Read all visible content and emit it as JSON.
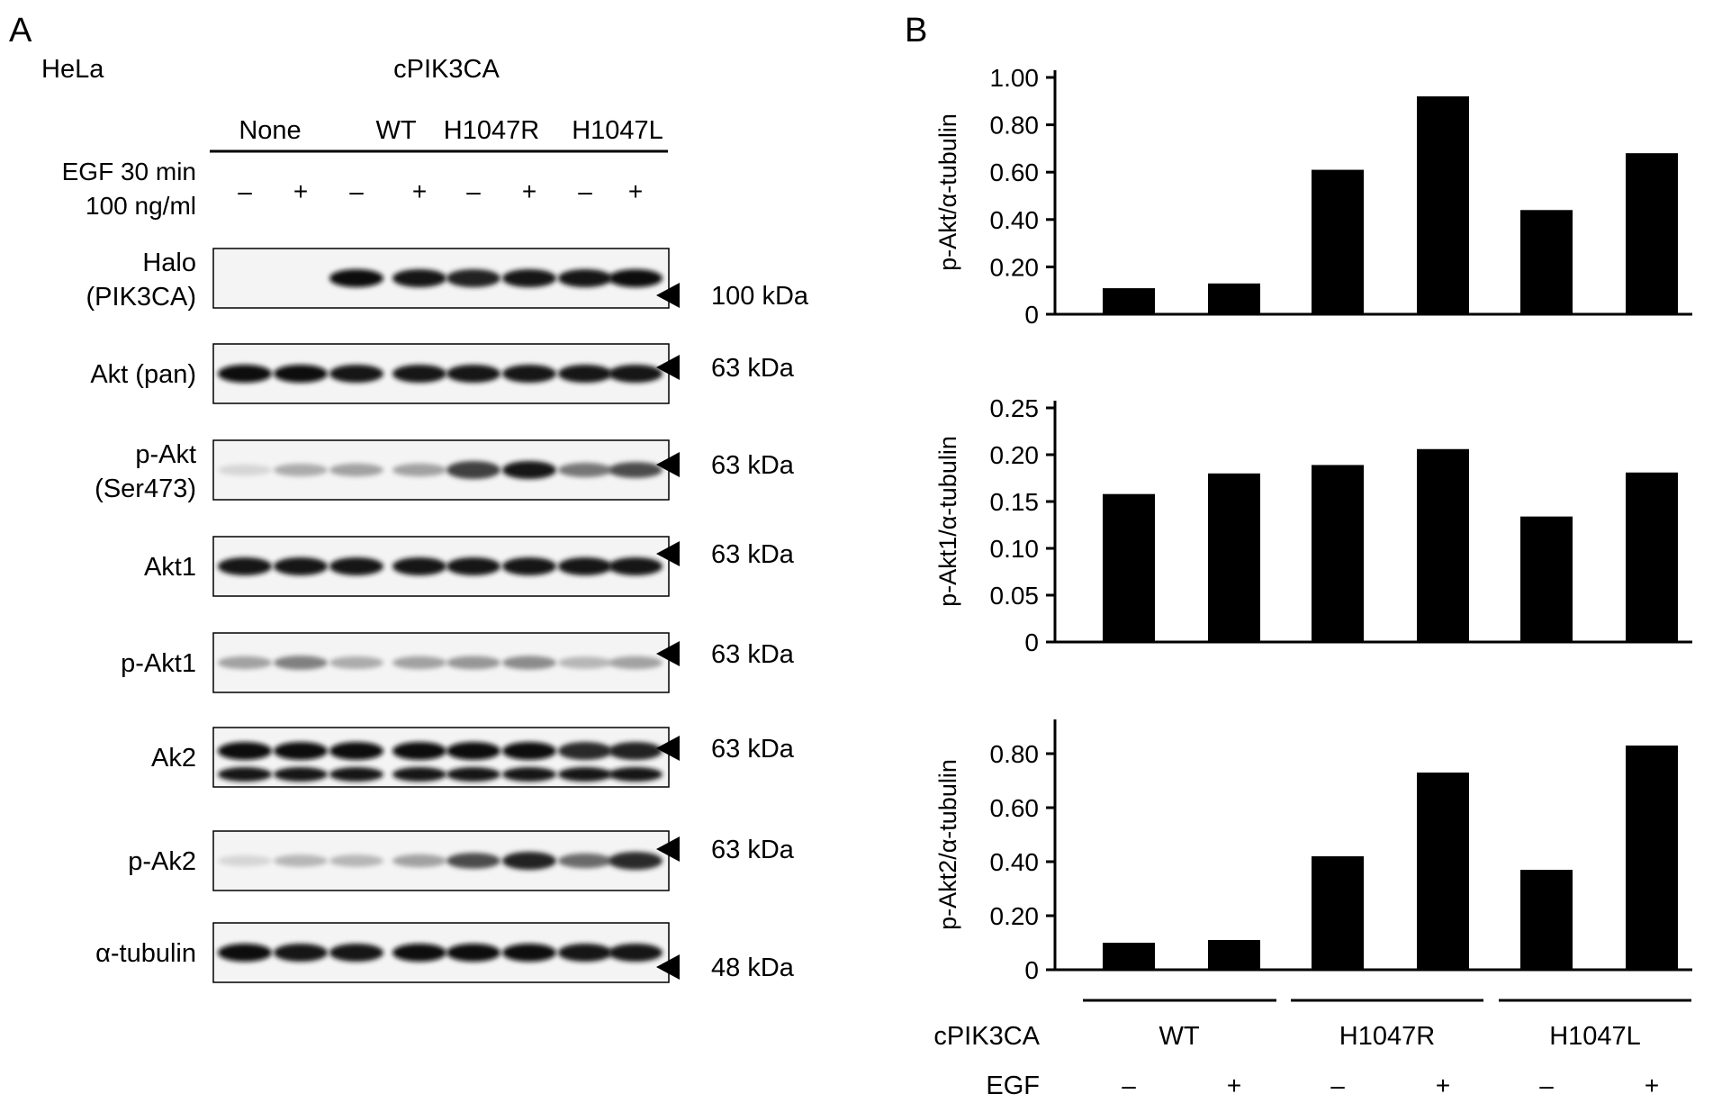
{
  "panel_a": {
    "letter": "A",
    "cell_line": "HeLa",
    "construct_header": "cPIK3CA",
    "group_labels": [
      "None",
      "WT",
      "H1047R",
      "H1047L"
    ],
    "treatment_line1": "EGF 30 min",
    "treatment_line2": "100 ng/ml",
    "treatment_signs": [
      "–",
      "+",
      "–",
      "+",
      "–",
      "+",
      "–",
      "+"
    ],
    "blots": [
      {
        "label_lines": [
          "Halo",
          "(PIK3CA)"
        ],
        "marker": "100 kDa",
        "intensity": [
          0,
          0,
          1.0,
          0.95,
          0.9,
          0.95,
          0.95,
          1.0
        ]
      },
      {
        "label_lines": [
          "Akt (pan)"
        ],
        "marker": "63 kDa",
        "intensity": [
          1.0,
          1.0,
          0.95,
          0.95,
          0.95,
          0.95,
          0.95,
          0.95
        ]
      },
      {
        "label_lines": [
          "p-Akt",
          "(Ser473)"
        ],
        "marker": "63 kDa",
        "intensity": [
          0.05,
          0.25,
          0.3,
          0.3,
          0.75,
          0.95,
          0.5,
          0.7
        ]
      },
      {
        "label_lines": [
          "Akt1"
        ],
        "marker": "63 kDa",
        "intensity": [
          0.95,
          0.95,
          0.95,
          0.95,
          0.95,
          0.95,
          0.95,
          0.95
        ]
      },
      {
        "label_lines": [
          "p-Akt1"
        ],
        "marker": "63 kDa",
        "intensity": [
          0.3,
          0.45,
          0.25,
          0.3,
          0.35,
          0.4,
          0.2,
          0.3
        ]
      },
      {
        "label_lines": [
          "Ak2"
        ],
        "marker": "63 kDa",
        "intensity": [
          1.0,
          1.0,
          1.0,
          1.0,
          1.0,
          1.0,
          0.85,
          0.9
        ]
      },
      {
        "label_lines": [
          "p-Ak2"
        ],
        "marker": "63 kDa",
        "intensity": [
          0.05,
          0.2,
          0.2,
          0.3,
          0.7,
          0.9,
          0.55,
          0.85
        ]
      },
      {
        "label_lines": [
          "α-tubulin"
        ],
        "marker": "48 kDa",
        "intensity": [
          1.0,
          0.95,
          0.95,
          1.0,
          1.0,
          1.0,
          0.95,
          0.95
        ]
      }
    ]
  },
  "panel_b": {
    "letter": "B",
    "construct_label": "cPIK3CA",
    "egf_label": "EGF",
    "groups": [
      "WT",
      "H1047R",
      "H1047L"
    ],
    "egf_signs": [
      "–",
      "+",
      "–",
      "+",
      "–",
      "+"
    ],
    "bar_color": "#000000"
  },
  "chart_data": [
    {
      "type": "bar",
      "categories": [
        "WT –",
        "WT +",
        "H1047R –",
        "H1047R +",
        "H1047L –",
        "H1047L +"
      ],
      "values": [
        0.11,
        0.13,
        0.61,
        0.92,
        0.44,
        0.68
      ],
      "ylabel": "p-Akt/α-tubulin",
      "ylim": [
        0,
        1.0
      ],
      "yticks": [
        "0",
        "0.20",
        "0.40",
        "0.60",
        "0.80",
        "1.00"
      ]
    },
    {
      "type": "bar",
      "categories": [
        "WT –",
        "WT +",
        "H1047R –",
        "H1047R +",
        "H1047L –",
        "H1047L +"
      ],
      "values": [
        0.158,
        0.18,
        0.189,
        0.206,
        0.134,
        0.181
      ],
      "ylabel": "p-Akt1/α-tubulin",
      "ylim": [
        0,
        0.25
      ],
      "yticks": [
        "0",
        "0.05",
        "0.10",
        "0.15",
        "0.20",
        "0.25"
      ]
    },
    {
      "type": "bar",
      "categories": [
        "WT –",
        "WT +",
        "H1047R –",
        "H1047R +",
        "H1047L –",
        "H1047L +"
      ],
      "values": [
        0.1,
        0.11,
        0.42,
        0.73,
        0.37,
        0.83
      ],
      "ylabel": "p-Akt2/α-tubulin",
      "ylim": [
        0,
        0.9
      ],
      "yticks": [
        "0",
        "0.20",
        "0.40",
        "0.60",
        "0.80"
      ]
    }
  ]
}
